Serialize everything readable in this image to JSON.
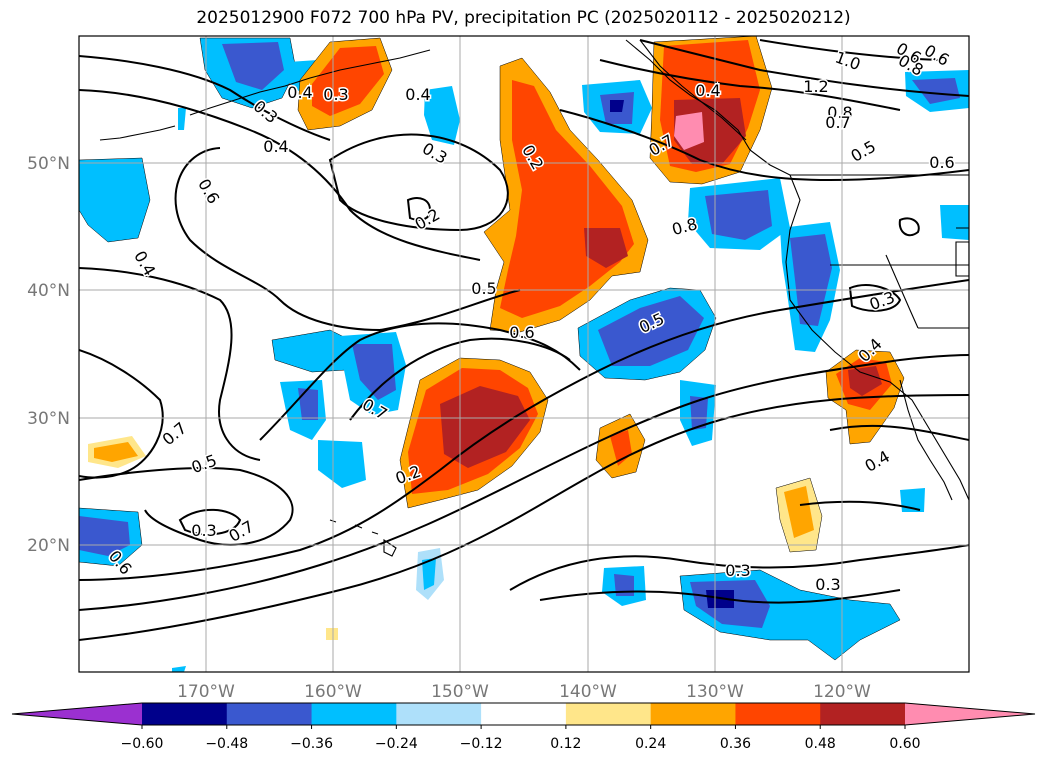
{
  "title": "2025012900 F072 700 hPa PV, precipitation PC (2025020112 - 2025020212)",
  "map": {
    "lon_range": [
      -180,
      -110
    ],
    "lat_range": [
      10,
      60
    ],
    "lon_ticks": [
      "170°W",
      "160°W",
      "150°W",
      "140°W",
      "130°W",
      "120°W"
    ],
    "lat_ticks": [
      "50°N",
      "40°N",
      "30°N",
      "20°N"
    ],
    "gridlines": true
  },
  "pv_contour_labels": [
    "0.3",
    "0.4",
    "0.2",
    "0.3",
    "0.4",
    "0.3",
    "0.6",
    "0.4",
    "0.2",
    "0.5",
    "0.6",
    "0.8",
    "0.7",
    "0.4",
    "1.0",
    "1.2",
    "0.8",
    "0.7",
    "0.5",
    "0.6",
    "0.6",
    "0.8",
    "0.6",
    "0.7",
    "0.5",
    "0.7",
    "0.3",
    "0.4",
    "0.3",
    "0.5",
    "0.7",
    "0.6",
    "0.3",
    "0.4",
    "0.3",
    "0.2",
    "0.4"
  ],
  "colorbar": {
    "ticks": [
      "−0.60",
      "−0.48",
      "−0.36",
      "−0.24",
      "−0.12",
      "0.12",
      "0.24",
      "0.36",
      "0.48",
      "0.60"
    ],
    "colors": [
      "#9b30d0",
      "#00008b",
      "#3a58cf",
      "#00bfff",
      "#aee0fa",
      "#ffffff",
      "#ffe68a",
      "#ffa500",
      "#ff4500",
      "#b22222",
      "#ff8cb0"
    ],
    "extend": "both"
  }
}
